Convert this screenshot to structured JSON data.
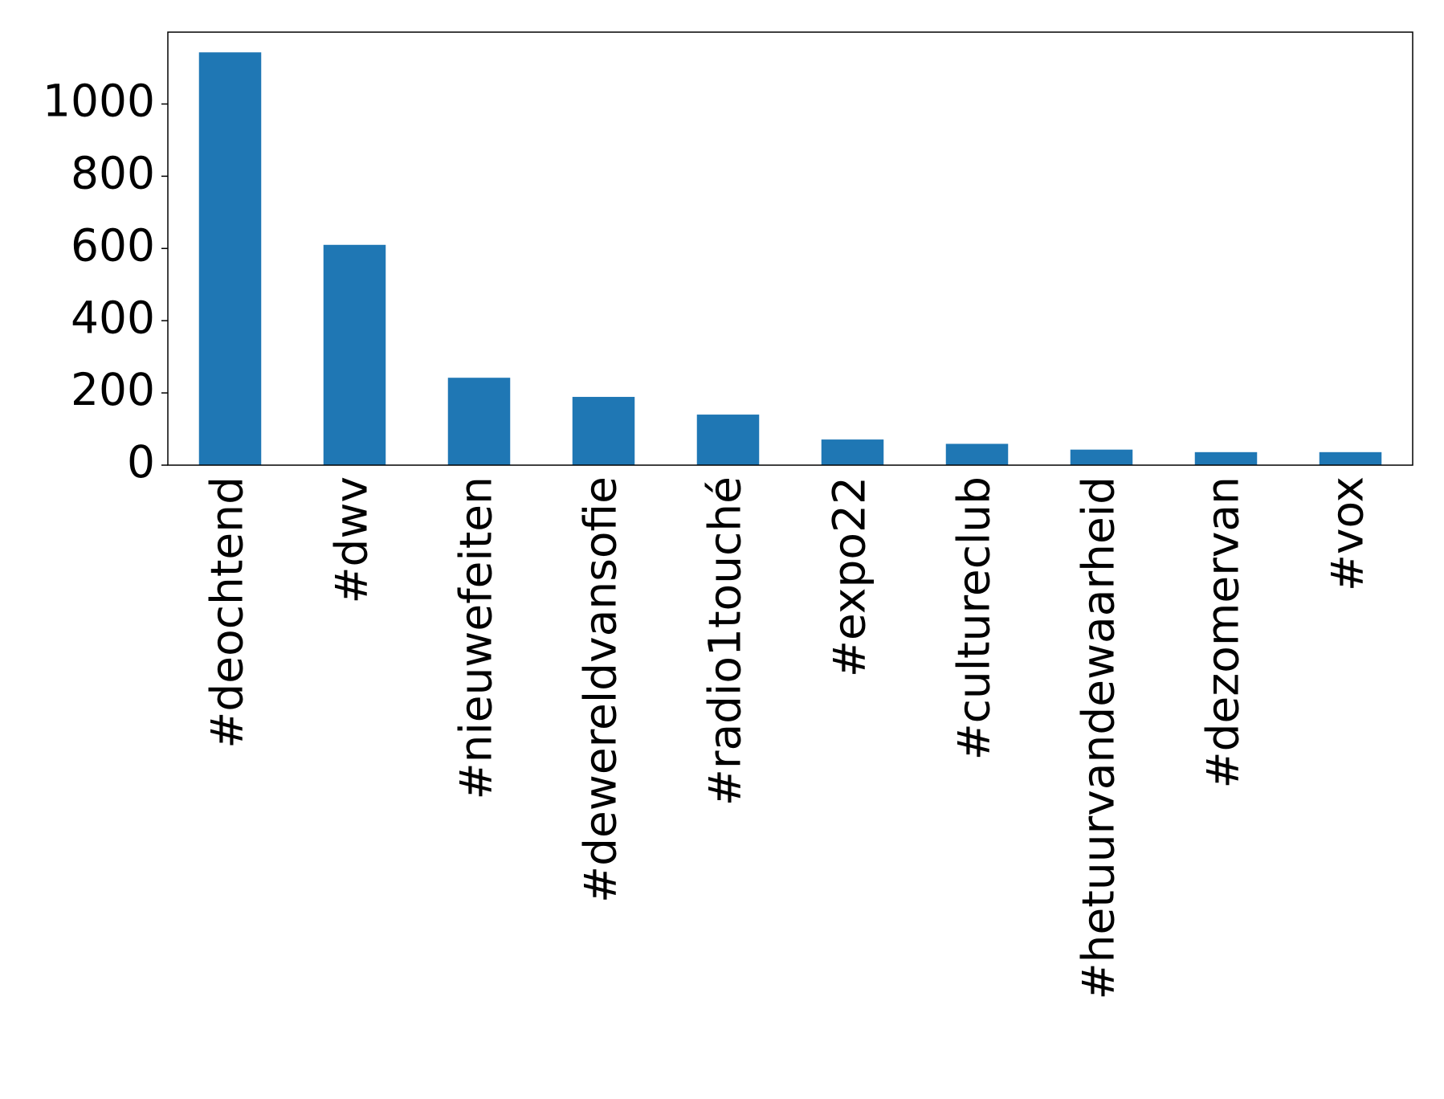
{
  "chart_data": {
    "type": "bar",
    "categories": [
      "#deochtend",
      "#dwv",
      "#nieuwefeiten",
      "#dewereldvansofie",
      "#radio1touché",
      "#expo22",
      "#cultureclub",
      "#hetuurvandewaarheid",
      "#dezomervan",
      "#vox"
    ],
    "values": [
      1143,
      610,
      242,
      189,
      140,
      71,
      59,
      43,
      36,
      36
    ],
    "color": "#1f77b4",
    "ylim": [
      0,
      1199
    ],
    "yticks": [
      0,
      200,
      400,
      600,
      800,
      1000
    ],
    "grid": false
  }
}
